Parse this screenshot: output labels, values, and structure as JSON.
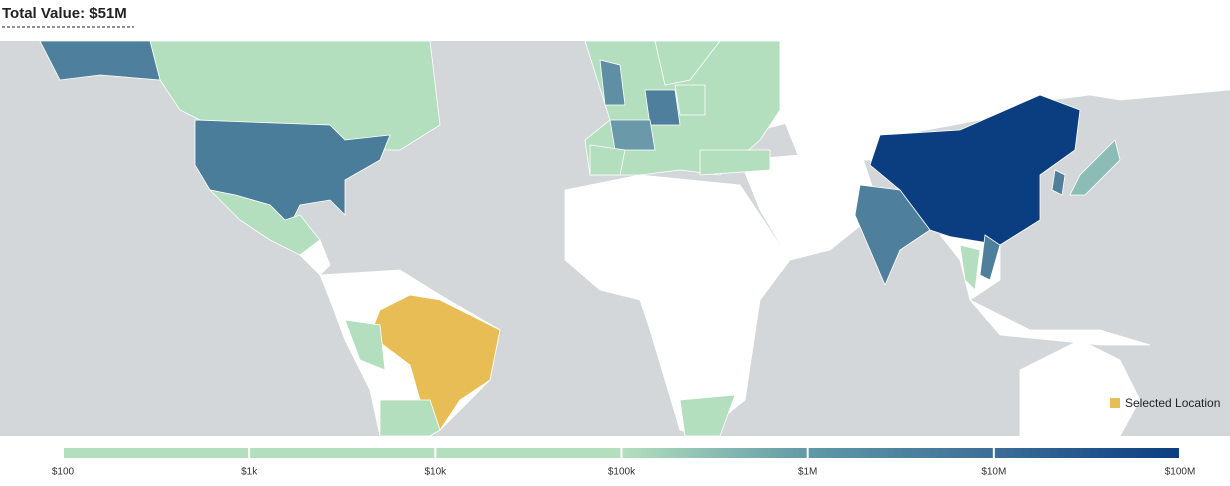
{
  "header": {
    "title": "Total Value: $51M"
  },
  "legend": {
    "label": "Selected Location",
    "color": "#e8bd55"
  },
  "colorbar": {
    "scale": "log",
    "range": [
      100,
      100000000
    ],
    "ticks": [
      {
        "value": 100,
        "label": "$100"
      },
      {
        "value": 1000,
        "label": "$1k"
      },
      {
        "value": 10000,
        "label": "$10k"
      },
      {
        "value": 100000,
        "label": "$100k"
      },
      {
        "value": 1000000,
        "label": "$1M"
      },
      {
        "value": 10000000,
        "label": "$10M"
      },
      {
        "value": 100000000,
        "label": "$100M"
      }
    ]
  }
}
